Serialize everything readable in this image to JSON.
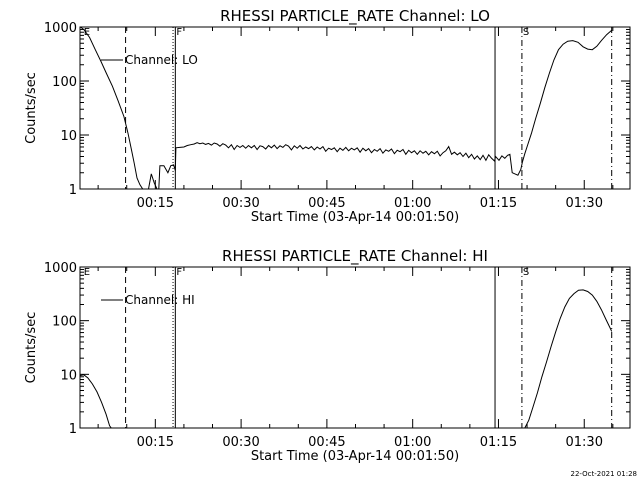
{
  "chart_data": [
    {
      "type": "line",
      "title": "RHESSI PARTICLE_RATE Channel: LO",
      "xlabel": "Start Time (03-Apr-14 00:01:50)",
      "ylabel": "Counts/sec",
      "xlim": [
        1.83,
        98
      ],
      "ylim": [
        1,
        1000
      ],
      "yscale": "log",
      "xticks": [
        {
          "v": 15,
          "label": "00:15"
        },
        {
          "v": 30,
          "label": "00:30"
        },
        {
          "v": 45,
          "label": "00:45"
        },
        {
          "v": 60,
          "label": "01:00"
        },
        {
          "v": 75,
          "label": "01:15"
        },
        {
          "v": 90,
          "label": "01:30"
        }
      ],
      "yticks": [
        {
          "v": 1,
          "label": "1"
        },
        {
          "v": 10,
          "label": "10"
        },
        {
          "v": 100,
          "label": "100"
        },
        {
          "v": 1000,
          "label": "1000"
        }
      ],
      "legend": "Channel: LO",
      "markers": [
        {
          "x": 2.3,
          "style": "none",
          "label": "E"
        },
        {
          "x": 9.8,
          "style": "dashed",
          "label": ""
        },
        {
          "x": 18.1,
          "style": "dotted",
          "label": ""
        },
        {
          "x": 18.5,
          "style": "solid",
          "label": "F"
        },
        {
          "x": 74.4,
          "style": "solid",
          "label": ""
        },
        {
          "x": 79.1,
          "style": "dashdot",
          "label": "S"
        },
        {
          "x": 94.8,
          "style": "dashdot",
          "label": ""
        }
      ],
      "series": [
        {
          "name": "LO",
          "segments": [
            [
              [
                1.9,
                1000
              ],
              [
                2.5,
                900
              ],
              [
                3.5,
                640
              ],
              [
                4.5,
                380
              ],
              [
                5.5,
                230
              ],
              [
                6.5,
                135
              ],
              [
                7.5,
                80
              ],
              [
                8.5,
                43
              ],
              [
                9.5,
                22
              ],
              [
                10.2,
                11
              ],
              [
                10.8,
                5.5
              ],
              [
                11.3,
                3
              ],
              [
                11.8,
                1.6
              ],
              [
                12.3,
                1.2
              ],
              [
                12.8,
                1.0
              ]
            ],
            [
              [
                13.8,
                1.0
              ],
              [
                14.3,
                1.9
              ],
              [
                14.8,
                1.3
              ],
              [
                15.3,
                1.0
              ]
            ],
            [
              [
                15.6,
                1.0
              ],
              [
                15.8,
                2.7
              ],
              [
                16.5,
                2.7
              ],
              [
                17.2,
                2.0
              ],
              [
                17.7,
                2.7
              ],
              [
                18.2,
                2.8
              ],
              [
                18.5,
                2.2
              ],
              [
                18.6,
                5.8
              ],
              [
                19.3,
                5.9
              ],
              [
                20,
                6.0
              ],
              [
                20.6,
                6.4
              ],
              [
                21.2,
                6.6
              ],
              [
                21.8,
                6.8
              ],
              [
                22.3,
                7.2
              ],
              [
                22.8,
                6.9
              ],
              [
                23.3,
                7.1
              ],
              [
                23.8,
                6.7
              ],
              [
                24.3,
                7.0
              ],
              [
                24.8,
                6.5
              ],
              [
                25.3,
                7.1
              ],
              [
                25.8,
                6.8
              ],
              [
                26.3,
                6.2
              ],
              [
                26.8,
                6.9
              ],
              [
                27.3,
                6.5
              ],
              [
                27.8,
                5.8
              ],
              [
                28.3,
                6.6
              ],
              [
                28.8,
                5.4
              ],
              [
                29.3,
                6.4
              ],
              [
                29.8,
                5.9
              ],
              [
                30.3,
                6.4
              ],
              [
                30.8,
                5.7
              ],
              [
                31.3,
                6.4
              ],
              [
                31.8,
                5.8
              ],
              [
                32.3,
                6.4
              ],
              [
                32.8,
                5.4
              ],
              [
                33.3,
                6.3
              ],
              [
                33.8,
                6.1
              ],
              [
                34.3,
                5.5
              ],
              [
                34.8,
                6.4
              ],
              [
                35.3,
                5.8
              ],
              [
                35.8,
                6.5
              ],
              [
                36.3,
                5.6
              ],
              [
                36.8,
                6.3
              ],
              [
                37.3,
                5.9
              ],
              [
                37.8,
                6.6
              ],
              [
                38.3,
                6.2
              ],
              [
                38.8,
                5.3
              ],
              [
                39.3,
                6.3
              ],
              [
                39.8,
                5.7
              ],
              [
                40.3,
                6.4
              ],
              [
                40.8,
                5.5
              ],
              [
                41.3,
                6.0
              ],
              [
                41.8,
                5.6
              ],
              [
                42.3,
                6.1
              ],
              [
                42.8,
                5.3
              ],
              [
                43.3,
                6.0
              ],
              [
                43.8,
                5.5
              ],
              [
                44.3,
                6.1
              ],
              [
                44.8,
                5.0
              ],
              [
                45.3,
                5.7
              ],
              [
                45.8,
                5.4
              ],
              [
                46.3,
                5.8
              ],
              [
                46.8,
                4.9
              ],
              [
                47.3,
                5.7
              ],
              [
                47.8,
                5.2
              ],
              [
                48.3,
                5.9
              ],
              [
                48.8,
                5.1
              ],
              [
                49.3,
                5.7
              ],
              [
                49.8,
                5.3
              ],
              [
                50.3,
                5.8
              ],
              [
                50.8,
                4.8
              ],
              [
                51.3,
                5.7
              ],
              [
                51.8,
                5.1
              ],
              [
                52.3,
                5.6
              ],
              [
                52.8,
                4.7
              ],
              [
                53.3,
                5.4
              ],
              [
                53.8,
                5.0
              ],
              [
                54.3,
                5.6
              ],
              [
                54.8,
                4.6
              ],
              [
                55.3,
                5.3
              ],
              [
                55.8,
                5.0
              ],
              [
                56.3,
                5.5
              ],
              [
                56.8,
                4.5
              ],
              [
                57.3,
                5.2
              ],
              [
                57.8,
                4.9
              ],
              [
                58.3,
                5.4
              ],
              [
                58.8,
                4.4
              ],
              [
                59.3,
                5.2
              ],
              [
                59.8,
                4.7
              ],
              [
                60.3,
                5.1
              ],
              [
                60.8,
                4.4
              ],
              [
                61.3,
                5.1
              ],
              [
                61.8,
                4.6
              ],
              [
                62.3,
                5.0
              ],
              [
                62.8,
                4.3
              ],
              [
                63.3,
                4.9
              ],
              [
                63.8,
                4.5
              ],
              [
                64.3,
                5.0
              ],
              [
                64.8,
                4.1
              ],
              [
                65.3,
                4.7
              ],
              [
                65.8,
                5.1
              ],
              [
                66.3,
                6.1
              ],
              [
                66.8,
                4.4
              ],
              [
                67.3,
                4.8
              ],
              [
                67.8,
                4.3
              ],
              [
                68.3,
                4.7
              ],
              [
                68.8,
                4.0
              ],
              [
                69.3,
                4.6
              ],
              [
                69.8,
                3.8
              ],
              [
                70.3,
                4.4
              ],
              [
                70.8,
                3.6
              ],
              [
                71.3,
                4.1
              ],
              [
                71.8,
                3.5
              ],
              [
                72.3,
                4.2
              ],
              [
                72.8,
                3.4
              ],
              [
                73.3,
                4.3
              ],
              [
                73.8,
                3.7
              ],
              [
                74.3,
                3.3
              ],
              [
                74.5,
                4.0
              ],
              [
                75.1,
                3.4
              ],
              [
                75.6,
                4.1
              ],
              [
                76.1,
                3.7
              ],
              [
                76.6,
                4.2
              ],
              [
                77.0,
                4.4
              ],
              [
                77.4,
                2.0
              ],
              [
                77.9,
                1.9
              ],
              [
                78.4,
                1.8
              ],
              [
                78.9,
                2.3
              ],
              [
                79.2,
                3.2
              ],
              [
                79.6,
                4.5
              ],
              [
                80.1,
                6.5
              ],
              [
                80.8,
                11
              ],
              [
                81.5,
                20
              ],
              [
                82.3,
                38
              ],
              [
                83.1,
                75
              ],
              [
                83.9,
                140
              ],
              [
                84.7,
                245
              ],
              [
                85.5,
                380
              ],
              [
                86.3,
                480
              ],
              [
                87.1,
                545
              ],
              [
                88,
                560
              ],
              [
                88.9,
                520
              ],
              [
                89.8,
                430
              ],
              [
                90.6,
                390
              ],
              [
                91.4,
                380
              ],
              [
                92.2,
                440
              ],
              [
                93,
                560
              ],
              [
                93.9,
                720
              ],
              [
                94.8,
                870
              ]
            ]
          ]
        }
      ]
    },
    {
      "type": "line",
      "title": "RHESSI PARTICLE_RATE Channel: HI",
      "xlabel": "Start Time (03-Apr-14 00:01:50)",
      "ylabel": "Counts/sec",
      "xlim": [
        1.83,
        98
      ],
      "ylim": [
        1,
        1000
      ],
      "yscale": "log",
      "xticks": [
        {
          "v": 15,
          "label": "00:15"
        },
        {
          "v": 30,
          "label": "00:30"
        },
        {
          "v": 45,
          "label": "00:45"
        },
        {
          "v": 60,
          "label": "01:00"
        },
        {
          "v": 75,
          "label": "01:15"
        },
        {
          "v": 90,
          "label": "01:30"
        }
      ],
      "yticks": [
        {
          "v": 1,
          "label": "1"
        },
        {
          "v": 10,
          "label": "10"
        },
        {
          "v": 100,
          "label": "100"
        },
        {
          "v": 1000,
          "label": "1000"
        }
      ],
      "legend": "Channel: HI",
      "markers": [
        {
          "x": 2.3,
          "style": "none",
          "label": "E"
        },
        {
          "x": 9.8,
          "style": "dashed",
          "label": ""
        },
        {
          "x": 18.1,
          "style": "dotted",
          "label": ""
        },
        {
          "x": 18.5,
          "style": "solid",
          "label": "F"
        },
        {
          "x": 74.4,
          "style": "solid",
          "label": ""
        },
        {
          "x": 79.1,
          "style": "dashdot",
          "label": "S"
        },
        {
          "x": 94.8,
          "style": "dashdot",
          "label": ""
        }
      ],
      "series": [
        {
          "name": "HI",
          "segments": [
            [
              [
                1.9,
                9.5
              ],
              [
                2.5,
                9.8
              ],
              [
                3.2,
                8.6
              ],
              [
                4,
                6.6
              ],
              [
                4.8,
                4.7
              ],
              [
                5.6,
                3.0
              ],
              [
                6.4,
                1.8
              ],
              [
                7.0,
                1.1
              ],
              [
                7.3,
                1.0
              ]
            ],
            [
              [
                79.6,
                1.0
              ],
              [
                80.3,
                1.4
              ],
              [
                81,
                2.4
              ],
              [
                81.8,
                4.5
              ],
              [
                82.6,
                9
              ],
              [
                83.4,
                17
              ],
              [
                84.2,
                33
              ],
              [
                85,
                62
              ],
              [
                85.8,
                110
              ],
              [
                86.6,
                180
              ],
              [
                87.4,
                260
              ],
              [
                88.2,
                320
              ],
              [
                89,
                370
              ],
              [
                89.8,
                375
              ],
              [
                90.6,
                350
              ],
              [
                91.4,
                300
              ],
              [
                92.2,
                230
              ],
              [
                93,
                160
              ],
              [
                93.8,
                105
              ],
              [
                94.6,
                70
              ],
              [
                94.8,
                63
              ]
            ]
          ]
        }
      ]
    }
  ],
  "footer": {
    "stamp": "22-Oct-2021 01:28"
  }
}
